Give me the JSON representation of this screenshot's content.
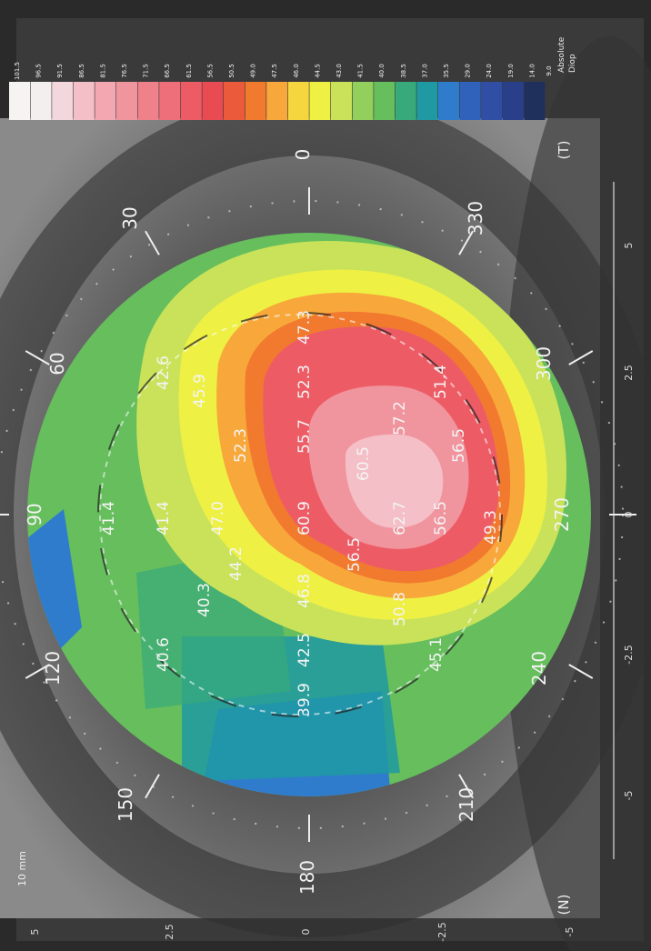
{
  "scale_colors": [
    "#f6f3f3",
    "#f4efef",
    "#f2d7dc",
    "#f4bfc6",
    "#f3a7b1",
    "#f0949e",
    "#ef818b",
    "#ee6f79",
    "#ed5c65",
    "#e84c52",
    "#eb5a3a",
    "#f17a2e",
    "#f8a73a",
    "#f6d63e",
    "#eef044",
    "#c9e25a",
    "#93cf5c",
    "#66be5d",
    "#37a97a",
    "#1f9aa2",
    "#2f7ccd",
    "#3162bb",
    "#2f4ea4",
    "#2a3f8a",
    "#1f305d"
  ],
  "scale_labels": [
    "101.5",
    "96.5",
    "91.5",
    "86.5",
    "81.5",
    "76.5",
    "71.5",
    "66.5",
    "61.5",
    "56.5",
    "50.5",
    "49.0",
    "47.5",
    "46.0",
    "44.5",
    "43.0",
    "41.5",
    "40.0",
    "38.5",
    "37.0",
    "35.5",
    "29.0",
    "24.0",
    "19.0",
    "14.0"
  ],
  "scale_bottom_value": "9.0",
  "scale_unit": "Absolute",
  "scale_unit2": "Diop",
  "corner_label": "10 mm",
  "meridians": [
    "0",
    "30",
    "60",
    "90",
    "120",
    "150",
    "180",
    "210",
    "240",
    "270",
    "300",
    "330"
  ],
  "side_left": "(T)",
  "side_right": "(N)",
  "axis_bottom": [
    "5",
    "2.5",
    "0",
    "-2.5",
    "-5"
  ],
  "axis_left": [
    "5",
    "2.5",
    "0",
    "-2.5",
    "-5"
  ],
  "values": [
    "47.3",
    "52.3",
    "55.7",
    "52.3",
    "45.9",
    "42.6",
    "51.4",
    "57.2",
    "60.5",
    "60.9",
    "47.0",
    "41.4",
    "41.4",
    "56.5",
    "62.7",
    "56.5",
    "44.2",
    "40.3",
    "46.8",
    "42.5",
    "40.6",
    "49.3",
    "50.8",
    "56.5",
    "45.1",
    "39.9"
  ]
}
